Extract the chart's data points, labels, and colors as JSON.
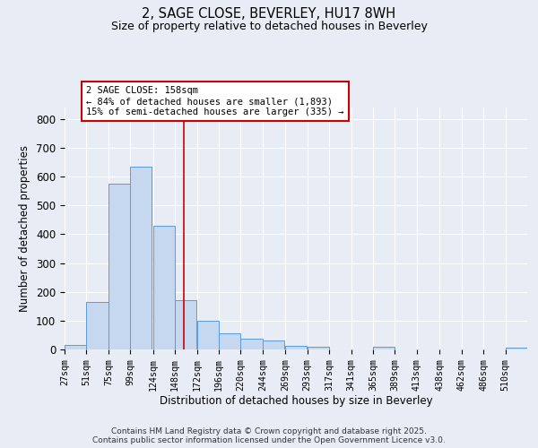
{
  "title": "2, SAGE CLOSE, BEVERLEY, HU17 8WH",
  "subtitle": "Size of property relative to detached houses in Beverley",
  "xlabel": "Distribution of detached houses by size in Beverley",
  "ylabel": "Number of detached properties",
  "bar_color": "#c5d8f0",
  "bar_edge_color": "#5b9bd5",
  "bins": [
    27,
    51,
    75,
    99,
    124,
    148,
    172,
    196,
    220,
    244,
    269,
    293,
    317,
    341,
    365,
    389,
    413,
    438,
    462,
    486,
    510
  ],
  "bin_width": 24,
  "bar_heights": [
    15,
    165,
    575,
    635,
    430,
    170,
    100,
    55,
    38,
    30,
    12,
    10,
    0,
    0,
    8,
    0,
    0,
    0,
    0,
    0,
    5
  ],
  "tick_labels": [
    "27sqm",
    "51sqm",
    "75sqm",
    "99sqm",
    "124sqm",
    "148sqm",
    "172sqm",
    "196sqm",
    "220sqm",
    "244sqm",
    "269sqm",
    "293sqm",
    "317sqm",
    "341sqm",
    "365sqm",
    "389sqm",
    "413sqm",
    "438sqm",
    "462sqm",
    "486sqm",
    "510sqm"
  ],
  "ylim": [
    0,
    840
  ],
  "yticks": [
    0,
    100,
    200,
    300,
    400,
    500,
    600,
    700,
    800
  ],
  "property_size": 158,
  "vline_color": "#cc0000",
  "annotation_text": "2 SAGE CLOSE: 158sqm\n← 84% of detached houses are smaller (1,893)\n15% of semi-detached houses are larger (335) →",
  "annotation_box_color": "#ffffff",
  "annotation_box_edge_color": "#cc0000",
  "bg_color": "#e8edf5",
  "plot_bg_color": "#e8edf5",
  "grid_color": "#ffffff",
  "footer_line1": "Contains HM Land Registry data © Crown copyright and database right 2025.",
  "footer_line2": "Contains public sector information licensed under the Open Government Licence v3.0."
}
